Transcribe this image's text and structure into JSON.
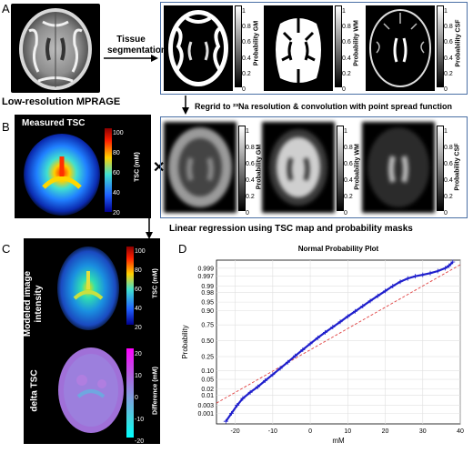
{
  "panels": {
    "a": "A",
    "b": "B",
    "c": "C",
    "d": "D"
  },
  "labels": {
    "tissue_segmentation_1": "Tissue",
    "tissue_segmentation_2": "segmentation",
    "low_res": "Low-resolution MPRAGE",
    "regrid": "Regrid to ²³Na resolution & convolution with point spread function",
    "measured_tsc": "Measured TSC",
    "times": "✕",
    "linear_regression": "Linear regression using TSC map and probability masks",
    "modeled_1": "Modeled image",
    "modeled_2": "intensity",
    "delta_tsc": "delta TSC"
  },
  "colorbars": {
    "prob_gm": "Probability GM",
    "prob_wm": "Probability WM",
    "prob_csf": "Probability CSF",
    "prob_ticks": [
      "1",
      "0.8",
      "0.6",
      "0.4",
      "0.2",
      "0"
    ],
    "tsc_title": "TSC (mM)",
    "tsc_ticks": [
      "100",
      "80",
      "60",
      "40",
      "20"
    ],
    "diff_title": "Difference (mM)",
    "diff_ticks": [
      "20",
      "10",
      "0",
      "-10",
      "-20"
    ]
  },
  "chart_data": {
    "type": "scatter",
    "title": "Normal Probability Plot",
    "xlabel": "mM",
    "ylabel": "Probability",
    "xlim": [
      -25,
      40
    ],
    "x_ticks": [
      "-20",
      "-10",
      "0",
      "10",
      "20",
      "30",
      "40"
    ],
    "y_ticks": [
      "0.999",
      "0.997",
      "0.99",
      "0.98",
      "0.95",
      "0.90",
      "0.75",
      "0.50",
      "0.25",
      "0.10",
      "0.05",
      "0.02",
      "0.01",
      "0.003",
      "0.001"
    ],
    "y_tick_values": [
      0.999,
      0.997,
      0.99,
      0.98,
      0.95,
      0.9,
      0.75,
      0.5,
      0.25,
      0.1,
      0.05,
      0.02,
      0.01,
      0.003,
      0.001
    ],
    "series": [
      {
        "marker": "+",
        "color": "#1f1fcc",
        "x": [
          -22.5,
          -21,
          -19.5,
          -18,
          -16,
          -14,
          -12,
          -10,
          -8,
          -6,
          -4,
          -2,
          0,
          2,
          4,
          6,
          8,
          10,
          12,
          14,
          16,
          18,
          20,
          22,
          24,
          26,
          28,
          30,
          32,
          34,
          36,
          37,
          38
        ],
        "p": [
          0.0003,
          0.001,
          0.003,
          0.007,
          0.014,
          0.025,
          0.045,
          0.075,
          0.12,
          0.18,
          0.26,
          0.35,
          0.45,
          0.55,
          0.64,
          0.72,
          0.79,
          0.85,
          0.895,
          0.93,
          0.955,
          0.972,
          0.983,
          0.99,
          0.994,
          0.996,
          0.997,
          0.9975,
          0.998,
          0.9985,
          0.999,
          0.9993,
          0.9996
        ]
      }
    ],
    "reference_line": {
      "color": "#e04040",
      "style": "dashed",
      "x": [
        -25,
        40
      ],
      "p": [
        0.004,
        0.9994
      ]
    }
  }
}
